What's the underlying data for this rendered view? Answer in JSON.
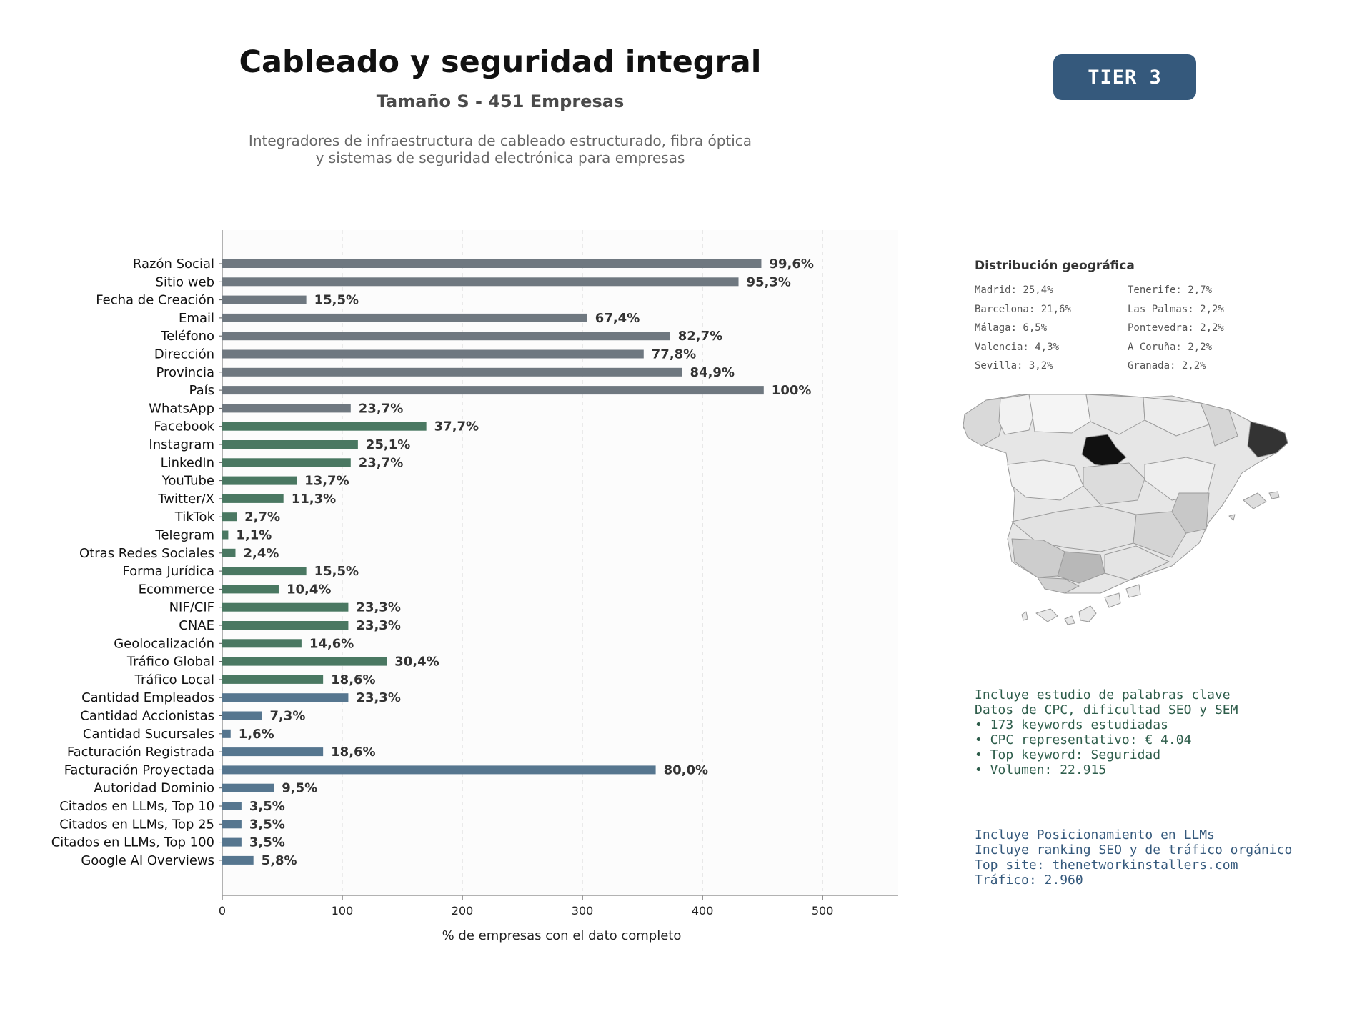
{
  "header": {
    "title": "Cableado y seguridad integral",
    "subtitle": "Tamaño S - 451 Empresas",
    "description_line1": "Integradores de infraestructura de cableado estructurado, fibra óptica",
    "description_line2": "y sistemas de seguridad electrónica para empresas",
    "tier": "TIER 3"
  },
  "chart_data": {
    "type": "bar",
    "orientation": "horizontal",
    "xlabel": "% de empresas con el dato completo",
    "xlim": [
      0,
      563
    ],
    "xticks": [
      0,
      100,
      200,
      300,
      400,
      500
    ],
    "grid": "x dashed",
    "categories": [
      "Razón Social",
      "Sitio web",
      "Fecha de Creación",
      "Email",
      "Teléfono",
      "Dirección",
      "Provincia",
      "País",
      "WhatsApp",
      "Facebook",
      "Instagram",
      "LinkedIn",
      "YouTube",
      "Twitter/X",
      "TikTok",
      "Telegram",
      "Otras Redes Sociales",
      "Forma Jurídica",
      "Ecommerce",
      "NIF/CIF",
      "CNAE",
      "Geolocalización",
      "Tráfico Global",
      "Tráfico Local",
      "Cantidad Empleados",
      "Cantidad Accionistas",
      "Cantidad Sucursales",
      "Facturación Registrada",
      "Facturación Proyectada",
      "Autoridad Dominio",
      "Citados en LLMs, Top 10",
      "Citados en LLMs, Top 25",
      "Citados en LLMs, Top 100",
      "Google AI Overviews"
    ],
    "values": [
      449,
      430,
      70,
      304,
      373,
      351,
      383,
      451,
      107,
      170,
      113,
      107,
      62,
      51,
      12,
      5,
      11,
      70,
      47,
      105,
      105,
      66,
      137,
      84,
      105,
      33,
      7,
      84,
      361,
      43,
      16,
      16,
      16,
      26
    ],
    "labels": [
      "99,6%",
      "95,3%",
      "15,5%",
      "67,4%",
      "82,7%",
      "77,8%",
      "84,9%",
      "100%",
      "23,7%",
      "37,7%",
      "25,1%",
      "23,7%",
      "13,7%",
      "11,3%",
      "2,7%",
      "1,1%",
      "2,4%",
      "15,5%",
      "10,4%",
      "23,3%",
      "23,3%",
      "14,6%",
      "30,4%",
      "18,6%",
      "23,3%",
      "7,3%",
      "1,6%",
      "18,6%",
      "80,0%",
      "9,5%",
      "3,5%",
      "3,5%",
      "3,5%",
      "5,8%"
    ],
    "groups": [
      "g",
      "g",
      "g",
      "g",
      "g",
      "g",
      "g",
      "g",
      "g",
      "s",
      "s",
      "s",
      "s",
      "s",
      "s",
      "s",
      "s",
      "s",
      "s",
      "s",
      "s",
      "s",
      "s",
      "s",
      "b",
      "b",
      "b",
      "b",
      "b",
      "b",
      "b",
      "b",
      "b",
      "b"
    ],
    "colors": {
      "g": "#6f7880",
      "s": "#4a7862",
      "b": "#56768f"
    }
  },
  "geo": {
    "title": "Distribución geográfica",
    "left": [
      "Madrid: 25,4%",
      "Barcelona: 21,6%",
      "Málaga: 6,5%",
      "Valencia: 4,3%",
      "Sevilla: 3,2%"
    ],
    "right": [
      "Tenerife: 2,7%",
      "Las Palmas: 2,2%",
      "Pontevedra: 2,2%",
      "A Coruña: 2,2%",
      "Granada: 2,2%"
    ]
  },
  "keywords": {
    "lines": [
      "Incluye estudio de palabras clave",
      "Datos de CPC, dificultad SEO y SEM",
      "",
      "• 173 keywords estudiadas",
      "• CPC representativo: € 4.04",
      "• Top keyword: Seguridad",
      "• Volumen: 22.915"
    ]
  },
  "llm": {
    "lines": [
      "Incluye Posicionamiento en LLMs",
      "Incluye ranking SEO y de tráfico orgánico",
      "",
      "Top site: thenetworkinstallers.com",
      "Tráfico: 2.960"
    ]
  },
  "colors": {
    "tier_bg": "#35597c",
    "keyword_text": "#2e5d4b",
    "llm_text": "#35597c"
  }
}
